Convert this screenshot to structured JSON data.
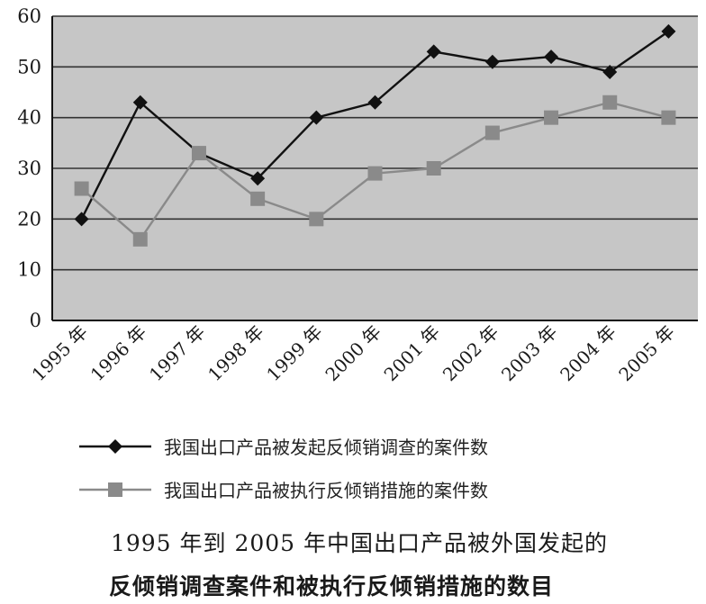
{
  "chart_data": {
    "type": "line",
    "title": "1995 年到 2005 年中国出口产品被外国发起的",
    "subtitle": "反倾销调查案件和被执行反倾销措施的数目",
    "xlabel": "",
    "ylabel": "",
    "categories": [
      "1995 年",
      "1996 年",
      "1997 年",
      "1998 年",
      "1999 年",
      "2000 年",
      "2001 年",
      "2002 年",
      "2003 年",
      "2004 年",
      "2005 年"
    ],
    "ylim": [
      0,
      60
    ],
    "yticks": [
      "0",
      "10",
      "20",
      "30",
      "40",
      "50",
      "60"
    ],
    "grid": true,
    "legend_position": "bottom",
    "series": [
      {
        "name": "我国出口产品被发起反倾销调查的案件数",
        "values": [
          20,
          43,
          33,
          28,
          40,
          43,
          53,
          51,
          52,
          49,
          57
        ],
        "color": "#111111",
        "marker": "diamond"
      },
      {
        "name": "我国出口产品被执行反倾销措施的案件数",
        "values": [
          26,
          16,
          33,
          24,
          20,
          29,
          30,
          37,
          40,
          43,
          40
        ],
        "color": "#8a8a8a",
        "marker": "square"
      }
    ]
  },
  "colors": {
    "plot_background": "#c6c6c6",
    "gridline": "#333333",
    "axis": "#111111"
  }
}
